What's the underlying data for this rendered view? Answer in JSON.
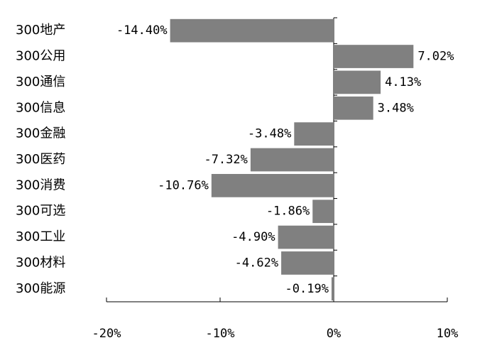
{
  "chart_data": {
    "type": "barh",
    "categories": [
      "300地产",
      "300公用",
      "300通信",
      "300信息",
      "300金融",
      "300医药",
      "300消费",
      "300可选",
      "300工业",
      "300材料",
      "300能源"
    ],
    "values": [
      -14.4,
      7.02,
      4.13,
      3.48,
      -3.48,
      -7.32,
      -10.76,
      -1.86,
      -4.9,
      -4.62,
      -0.19
    ],
    "value_labels": [
      "-14.40%",
      "7.02%",
      "4.13%",
      "3.48%",
      "-3.48%",
      "-7.32%",
      "-10.76%",
      "-1.86%",
      "-4.90%",
      "-4.62%",
      "-0.19%"
    ],
    "color": "#808080",
    "xlim": [
      -20,
      10
    ],
    "xticks": [
      {
        "value": -20,
        "label": "-20%"
      },
      {
        "value": -10,
        "label": "-10%"
      },
      {
        "value": 0,
        "label": "0%"
      },
      {
        "value": 10,
        "label": "10%"
      }
    ]
  }
}
